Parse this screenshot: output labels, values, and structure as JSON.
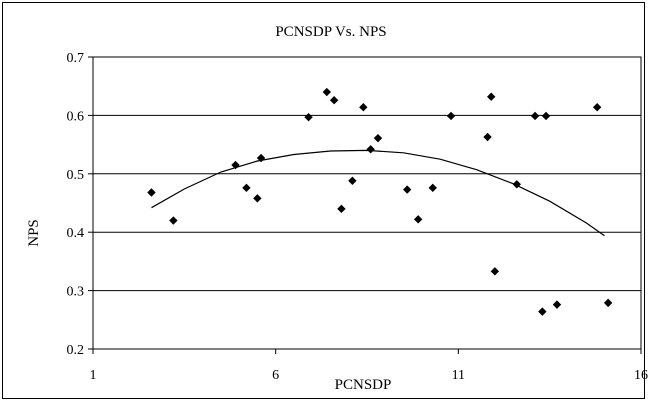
{
  "chart_data": {
    "type": "scatter",
    "title": "PCNSDP Vs. NPS",
    "xlabel": "PCNSDP",
    "ylabel": "NPS",
    "xlim": [
      1,
      16
    ],
    "ylim": [
      0.2,
      0.7
    ],
    "xticks": [
      "1",
      "6",
      "11",
      "16"
    ],
    "yticks": [
      "0.2",
      "0.3",
      "0.4",
      "0.5",
      "0.6",
      "0.7"
    ],
    "grid": "horizontal",
    "marker_color": "#000000",
    "points": [
      {
        "x": 2.6,
        "y": 0.468
      },
      {
        "x": 3.2,
        "y": 0.42
      },
      {
        "x": 4.9,
        "y": 0.515
      },
      {
        "x": 5.2,
        "y": 0.476
      },
      {
        "x": 5.5,
        "y": 0.458
      },
      {
        "x": 5.6,
        "y": 0.527
      },
      {
        "x": 6.9,
        "y": 0.597
      },
      {
        "x": 7.4,
        "y": 0.64
      },
      {
        "x": 7.6,
        "y": 0.626
      },
      {
        "x": 7.8,
        "y": 0.44
      },
      {
        "x": 8.1,
        "y": 0.488
      },
      {
        "x": 8.4,
        "y": 0.614
      },
      {
        "x": 8.6,
        "y": 0.542
      },
      {
        "x": 8.8,
        "y": 0.561
      },
      {
        "x": 9.6,
        "y": 0.473
      },
      {
        "x": 9.9,
        "y": 0.422
      },
      {
        "x": 10.3,
        "y": 0.476
      },
      {
        "x": 10.8,
        "y": 0.599
      },
      {
        "x": 11.8,
        "y": 0.563
      },
      {
        "x": 11.9,
        "y": 0.632
      },
      {
        "x": 12.0,
        "y": 0.333
      },
      {
        "x": 12.6,
        "y": 0.482
      },
      {
        "x": 13.1,
        "y": 0.599
      },
      {
        "x": 13.3,
        "y": 0.264
      },
      {
        "x": 13.4,
        "y": 0.599
      },
      {
        "x": 13.7,
        "y": 0.276
      },
      {
        "x": 14.8,
        "y": 0.614
      },
      {
        "x": 15.1,
        "y": 0.279
      }
    ],
    "trendline": {
      "type": "polynomial",
      "x": [
        2.6,
        3.5,
        4.5,
        5.5,
        6.5,
        7.5,
        8.5,
        9.5,
        10.5,
        11.5,
        12.5,
        13.5,
        14.5,
        15.0
      ],
      "y": [
        0.442,
        0.474,
        0.503,
        0.522,
        0.533,
        0.539,
        0.54,
        0.536,
        0.525,
        0.507,
        0.483,
        0.453,
        0.416,
        0.394
      ]
    }
  }
}
